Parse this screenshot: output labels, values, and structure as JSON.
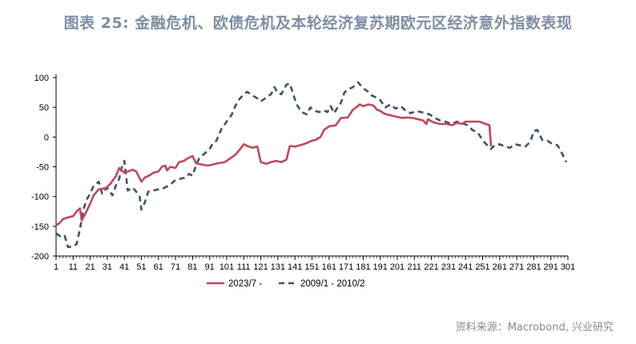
{
  "title": "图表 25: 金融危机、欧债危机及本轮经济复苏期欧元区经济意外指数表现",
  "source": "资料来源：Macrobond, 兴业研究",
  "chart_data": {
    "type": "line",
    "title": "图表 25: 金融危机、欧债危机及本轮经济复苏期欧元区经济意外指数表现",
    "xlabel": "",
    "ylabel": "",
    "xlim": [
      1,
      301
    ],
    "ylim": [
      -200,
      100
    ],
    "yticks": [
      100,
      50,
      0,
      -50,
      -100,
      -150,
      -200
    ],
    "xticks": [
      1,
      11,
      21,
      31,
      41,
      51,
      61,
      71,
      81,
      91,
      101,
      111,
      121,
      131,
      141,
      151,
      161,
      171,
      181,
      191,
      201,
      211,
      221,
      231,
      241,
      251,
      261,
      271,
      281,
      291,
      301
    ],
    "grid": false,
    "legend_position": "bottom",
    "series": [
      {
        "name": "2023/7 -",
        "color": "#c0485a",
        "style": "solid",
        "points": [
          [
            1,
            -148
          ],
          [
            3,
            -145
          ],
          [
            5,
            -138
          ],
          [
            8,
            -135
          ],
          [
            11,
            -133
          ],
          [
            13,
            -125
          ],
          [
            15,
            -120
          ],
          [
            16,
            -140
          ],
          [
            18,
            -130
          ],
          [
            21,
            -112
          ],
          [
            23,
            -98
          ],
          [
            26,
            -88
          ],
          [
            30,
            -86
          ],
          [
            33,
            -78
          ],
          [
            36,
            -66
          ],
          [
            38,
            -52
          ],
          [
            41,
            -60
          ],
          [
            43,
            -58
          ],
          [
            46,
            -55
          ],
          [
            48,
            -58
          ],
          [
            51,
            -75
          ],
          [
            53,
            -68
          ],
          [
            56,
            -64
          ],
          [
            58,
            -60
          ],
          [
            61,
            -58
          ],
          [
            63,
            -50
          ],
          [
            65,
            -48
          ],
          [
            66,
            -56
          ],
          [
            68,
            -50
          ],
          [
            71,
            -52
          ],
          [
            73,
            -42
          ],
          [
            76,
            -40
          ],
          [
            78,
            -36
          ],
          [
            81,
            -32
          ],
          [
            83,
            -44
          ],
          [
            86,
            -46
          ],
          [
            90,
            -48
          ],
          [
            93,
            -46
          ],
          [
            96,
            -44
          ],
          [
            100,
            -42
          ],
          [
            103,
            -36
          ],
          [
            106,
            -30
          ],
          [
            109,
            -20
          ],
          [
            111,
            -12
          ],
          [
            113,
            -15
          ],
          [
            116,
            -18
          ],
          [
            119,
            -16
          ],
          [
            121,
            -42
          ],
          [
            124,
            -45
          ],
          [
            127,
            -42
          ],
          [
            130,
            -40
          ],
          [
            133,
            -42
          ],
          [
            136,
            -38
          ],
          [
            138,
            -15
          ],
          [
            141,
            -16
          ],
          [
            145,
            -13
          ],
          [
            148,
            -10
          ],
          [
            151,
            -6
          ],
          [
            153,
            -5
          ],
          [
            156,
            0
          ],
          [
            158,
            12
          ],
          [
            161,
            18
          ],
          [
            165,
            20
          ],
          [
            168,
            32
          ],
          [
            172,
            33
          ],
          [
            175,
            46
          ],
          [
            177,
            50
          ],
          [
            179,
            55
          ],
          [
            181,
            52
          ],
          [
            184,
            55
          ],
          [
            187,
            53
          ],
          [
            189,
            46
          ],
          [
            191,
            44
          ],
          [
            193,
            40
          ],
          [
            195,
            38
          ],
          [
            198,
            36
          ],
          [
            201,
            34
          ],
          [
            204,
            32
          ],
          [
            207,
            33
          ],
          [
            210,
            32
          ],
          [
            213,
            30
          ],
          [
            216,
            28
          ],
          [
            218,
            22
          ],
          [
            219,
            30
          ],
          [
            222,
            25
          ],
          [
            226,
            22
          ],
          [
            230,
            22
          ],
          [
            233,
            20
          ],
          [
            236,
            24
          ],
          [
            239,
            22
          ],
          [
            241,
            26
          ],
          [
            245,
            26
          ],
          [
            249,
            26
          ],
          [
            251,
            24
          ],
          [
            255,
            20
          ],
          [
            256,
            -16
          ]
        ]
      },
      {
        "name": "2009/1 - 2010/2",
        "color": "#3e5270",
        "style": "dashed",
        "points": [
          [
            1,
            -162
          ],
          [
            4,
            -168
          ],
          [
            6,
            -166
          ],
          [
            8,
            -185
          ],
          [
            11,
            -184
          ],
          [
            13,
            -180
          ],
          [
            15,
            -155
          ],
          [
            17,
            -122
          ],
          [
            19,
            -105
          ],
          [
            21,
            -95
          ],
          [
            23,
            -82
          ],
          [
            26,
            -75
          ],
          [
            28,
            -95
          ],
          [
            31,
            -85
          ],
          [
            34,
            -98
          ],
          [
            36,
            -82
          ],
          [
            38,
            -70
          ],
          [
            40,
            -45
          ],
          [
            41,
            -40
          ],
          [
            43,
            -90
          ],
          [
            46,
            -85
          ],
          [
            48,
            -92
          ],
          [
            50,
            -100
          ],
          [
            51,
            -122
          ],
          [
            53,
            -110
          ],
          [
            55,
            -92
          ],
          [
            58,
            -90
          ],
          [
            61,
            -88
          ],
          [
            64,
            -86
          ],
          [
            68,
            -80
          ],
          [
            71,
            -72
          ],
          [
            74,
            -70
          ],
          [
            77,
            -68
          ],
          [
            79,
            -62
          ],
          [
            81,
            -65
          ],
          [
            83,
            -48
          ],
          [
            85,
            -35
          ],
          [
            88,
            -28
          ],
          [
            91,
            -20
          ],
          [
            93,
            -10
          ],
          [
            95,
            -6
          ],
          [
            98,
            14
          ],
          [
            100,
            22
          ],
          [
            102,
            30
          ],
          [
            104,
            38
          ],
          [
            106,
            52
          ],
          [
            108,
            62
          ],
          [
            111,
            72
          ],
          [
            113,
            76
          ],
          [
            116,
            70
          ],
          [
            119,
            65
          ],
          [
            121,
            60
          ],
          [
            124,
            66
          ],
          [
            127,
            72
          ],
          [
            129,
            84
          ],
          [
            131,
            74
          ],
          [
            133,
            72
          ],
          [
            136,
            88
          ],
          [
            138,
            90
          ],
          [
            140,
            72
          ],
          [
            142,
            55
          ],
          [
            145,
            42
          ],
          [
            148,
            38
          ],
          [
            150,
            50
          ],
          [
            152,
            45
          ],
          [
            155,
            42
          ],
          [
            158,
            45
          ],
          [
            160,
            42
          ],
          [
            162,
            52
          ],
          [
            164,
            40
          ],
          [
            166,
            50
          ],
          [
            168,
            58
          ],
          [
            170,
            75
          ],
          [
            172,
            80
          ],
          [
            175,
            84
          ],
          [
            178,
            92
          ],
          [
            181,
            82
          ],
          [
            184,
            76
          ],
          [
            186,
            70
          ],
          [
            189,
            66
          ],
          [
            191,
            62
          ],
          [
            194,
            50
          ],
          [
            197,
            55
          ],
          [
            200,
            48
          ],
          [
            203,
            52
          ],
          [
            206,
            44
          ],
          [
            209,
            40
          ],
          [
            212,
            44
          ],
          [
            215,
            42
          ],
          [
            218,
            40
          ],
          [
            220,
            38
          ],
          [
            223,
            32
          ],
          [
            226,
            28
          ],
          [
            229,
            26
          ],
          [
            231,
            24
          ],
          [
            233,
            22
          ],
          [
            236,
            26
          ],
          [
            239,
            24
          ],
          [
            242,
            20
          ],
          [
            245,
            12
          ],
          [
            248,
            8
          ],
          [
            251,
            -5
          ],
          [
            254,
            -15
          ],
          [
            256,
            -20
          ],
          [
            258,
            -14
          ],
          [
            261,
            -12
          ],
          [
            264,
            -16
          ],
          [
            267,
            -18
          ],
          [
            270,
            -12
          ],
          [
            273,
            -14
          ],
          [
            276,
            -16
          ],
          [
            279,
            -8
          ],
          [
            281,
            10
          ],
          [
            283,
            12
          ],
          [
            286,
            -5
          ],
          [
            289,
            -6
          ],
          [
            292,
            -12
          ],
          [
            295,
            -14
          ],
          [
            298,
            -30
          ],
          [
            300,
            -42
          ]
        ]
      }
    ]
  }
}
